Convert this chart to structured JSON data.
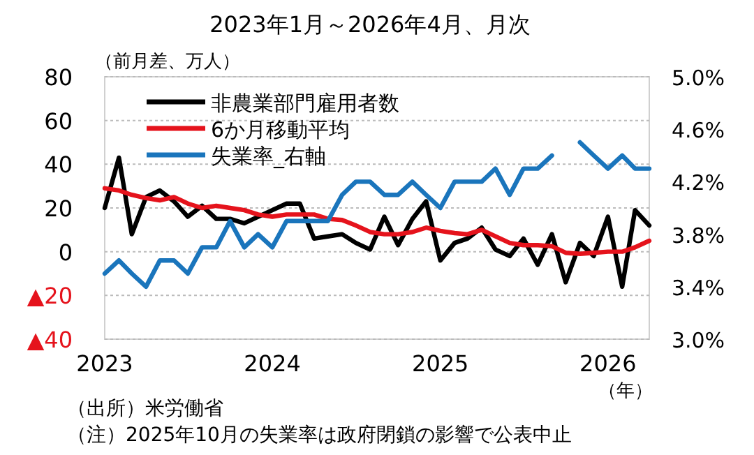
{
  "chart_data": {
    "type": "line",
    "title": "2023年1月～2026年4月、月次",
    "ylabel": "（前月差、万人）",
    "xlabel": "（年）",
    "annotations": [
      "（出所）米労働省",
      "（注）2025年10月の失業率は政府閉鎖の影響で公表中止"
    ],
    "x": [
      "2023-01",
      "2023-02",
      "2023-03",
      "2023-04",
      "2023-05",
      "2023-06",
      "2023-07",
      "2023-08",
      "2023-09",
      "2023-10",
      "2023-11",
      "2023-12",
      "2024-01",
      "2024-02",
      "2024-03",
      "2024-04",
      "2024-05",
      "2024-06",
      "2024-07",
      "2024-08",
      "2024-09",
      "2024-10",
      "2024-11",
      "2024-12",
      "2025-01",
      "2025-02",
      "2025-03",
      "2025-04",
      "2025-05",
      "2025-06",
      "2025-07",
      "2025-08",
      "2025-09",
      "2025-10",
      "2025-11",
      "2025-12",
      "2026-01",
      "2026-02",
      "2026-03",
      "2026-04"
    ],
    "xlim": [
      "2023-01",
      "2026-04"
    ],
    "xticks": [
      "2023",
      "2024",
      "2025",
      "2026"
    ],
    "ylim": [
      -40,
      80
    ],
    "yticks": [
      {
        "value": -40,
        "label": "▲40"
      },
      {
        "value": -20,
        "label": "▲20"
      },
      0,
      20,
      40,
      60,
      80
    ],
    "y2lim": [
      3.0,
      5.0
    ],
    "y2ticks": [
      {
        "value": 3.0,
        "label": "3.0%"
      },
      {
        "value": 3.4,
        "label": "3.4%"
      },
      {
        "value": 3.8,
        "label": "3.8%"
      },
      {
        "value": 4.2,
        "label": "4.2%"
      },
      {
        "value": 4.6,
        "label": "4.6%"
      },
      {
        "value": 5.0,
        "label": "5.0%"
      }
    ],
    "grid": "y",
    "legend": "top left",
    "marker": "none",
    "line_style": "solid",
    "series": [
      {
        "name": "非農業部門雇用者数",
        "color": "#000000",
        "values": [
          20,
          43,
          8,
          25,
          28,
          23,
          16,
          21,
          15,
          15,
          13,
          16,
          19,
          22,
          22,
          6,
          7,
          8,
          4,
          1,
          16,
          3,
          15,
          23,
          -4,
          4,
          6,
          11,
          1,
          -2,
          6,
          -6,
          8,
          -14,
          4,
          -2,
          16,
          -16,
          19,
          12
        ]
      },
      {
        "name": "6か月移動平均",
        "color": "#e5131c",
        "values": [
          29,
          28,
          26,
          24.5,
          23.5,
          25,
          22,
          20,
          21,
          20,
          19,
          17,
          16,
          17,
          17,
          17,
          15,
          14.5,
          12,
          9,
          8,
          8,
          9,
          11,
          9.5,
          8.5,
          8,
          10,
          7,
          4,
          3,
          3,
          2.5,
          -0.5,
          -1,
          -0.5,
          0,
          0,
          2,
          5
        ]
      },
      {
        "name": "失業率_右軸",
        "color": "#1a75bc",
        "axis": "y2",
        "values": [
          3.5,
          3.6,
          3.5,
          3.4,
          3.6,
          3.6,
          3.5,
          3.7,
          3.7,
          3.9,
          3.7,
          3.8,
          3.7,
          3.9,
          3.9,
          3.9,
          3.9,
          4.1,
          4.2,
          4.2,
          4.1,
          4.1,
          4.2,
          4.1,
          4.0,
          4.2,
          4.2,
          4.2,
          4.3,
          4.1,
          4.3,
          4.3,
          4.4,
          null,
          4.5,
          4.4,
          4.3,
          4.4,
          4.3,
          4.3
        ]
      }
    ]
  }
}
